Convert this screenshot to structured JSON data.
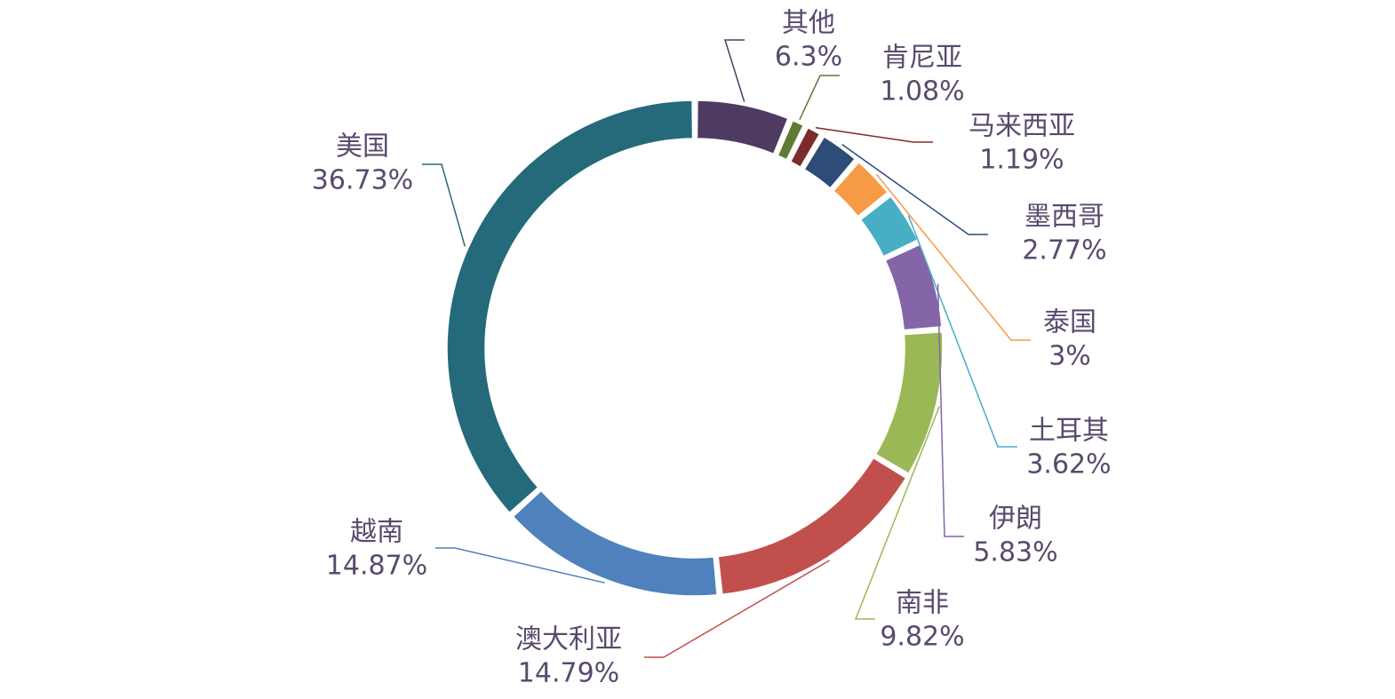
{
  "chart_data": {
    "type": "pie",
    "variant": "donut",
    "title": "",
    "slices": [
      {
        "name": "其他",
        "label": "6.3%",
        "value": 6.3,
        "color": "#4f3b61"
      },
      {
        "name": "肯尼亚",
        "label": "1.08%",
        "value": 1.08,
        "color": "#5f7a32"
      },
      {
        "name": "马来西亚",
        "label": "1.19%",
        "value": 1.19,
        "color": "#7b2b2b"
      },
      {
        "name": "墨西哥",
        "label": "2.77%",
        "value": 2.77,
        "color": "#2d4c78"
      },
      {
        "name": "泰国",
        "label": "3%",
        "value": 3,
        "color": "#f59a45"
      },
      {
        "name": "土耳其",
        "label": "3.62%",
        "value": 3.62,
        "color": "#47aec6"
      },
      {
        "name": "伊朗",
        "label": "5.83%",
        "value": 5.83,
        "color": "#8465a8"
      },
      {
        "name": "南非",
        "label": "9.82%",
        "value": 9.82,
        "color": "#9ab956"
      },
      {
        "name": "澳大利亚",
        "label": "14.79%",
        "value": 14.79,
        "color": "#c1504d"
      },
      {
        "name": "越南",
        "label": "14.87%",
        "value": 14.87,
        "color": "#4f81bd"
      },
      {
        "name": "美国",
        "label": "36.73%",
        "value": 36.73,
        "color": "#246a7b"
      }
    ],
    "legend": "none",
    "label_style": "outside with leader lines",
    "text_color": "#5a4a6e"
  }
}
